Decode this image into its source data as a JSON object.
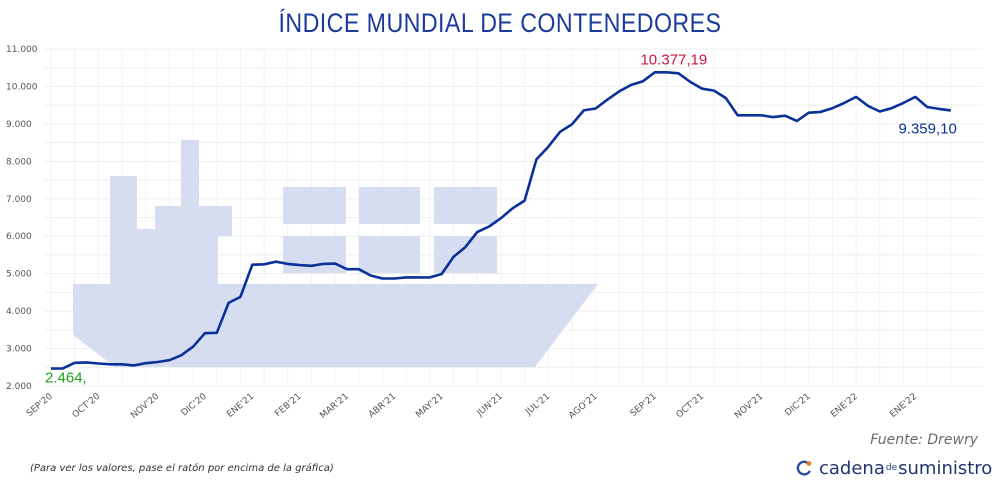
{
  "chart_data": {
    "type": "line",
    "title": "ÍNDICE MUNDIAL DE CONTENEDORES",
    "xlabel": "",
    "ylabel": "",
    "ylim": [
      2000,
      11000
    ],
    "y_ticks": [
      "2.000",
      "3.000",
      "4.000",
      "5.000",
      "6.000",
      "7.000",
      "8.000",
      "9.000",
      "10.000",
      "11.000"
    ],
    "x_ticks": [
      {
        "label": "SEP'20",
        "week": 0
      },
      {
        "label": "OCT'20",
        "week": 4
      },
      {
        "label": "NOV'20",
        "week": 9
      },
      {
        "label": "DIC'20",
        "week": 13
      },
      {
        "label": "ENE'21",
        "week": 17
      },
      {
        "label": "FEB'21",
        "week": 21
      },
      {
        "label": "MAR'21",
        "week": 25
      },
      {
        "label": "ABR'21",
        "week": 29
      },
      {
        "label": "MAY'21",
        "week": 33
      },
      {
        "label": "JUN'21",
        "week": 38
      },
      {
        "label": "JUL'21",
        "week": 42
      },
      {
        "label": "AGO'21",
        "week": 46
      },
      {
        "label": "SEP'21",
        "week": 51
      },
      {
        "label": "OCT'21",
        "week": 55
      },
      {
        "label": "NOV'21",
        "week": 60
      },
      {
        "label": "DIC'21",
        "week": 64
      },
      {
        "label": "ENE'22",
        "week": 68
      },
      {
        "label": "ENE'22",
        "week": 73
      }
    ],
    "grid": true,
    "series": [
      {
        "name": "",
        "color": "#0a3197",
        "values": [
          2464,
          2470,
          2620,
          2630,
          2600,
          2580,
          2580,
          2550,
          2610,
          2640,
          2690,
          2820,
          3050,
          3410,
          3420,
          4220,
          4380,
          5240,
          5250,
          5320,
          5260,
          5230,
          5210,
          5260,
          5270,
          5120,
          5120,
          4950,
          4870,
          4870,
          4900,
          4900,
          4900,
          4990,
          5450,
          5710,
          6110,
          6260,
          6480,
          6750,
          6950,
          8050,
          8390,
          8790,
          8990,
          9360,
          9410,
          9650,
          9870,
          10040,
          10140,
          10377.19,
          10377,
          10350,
          10120,
          9940,
          9890,
          9690,
          9230,
          9230,
          9230,
          9180,
          9220,
          9080,
          9300,
          9320,
          9420,
          9560,
          9720,
          9480,
          9330,
          9420,
          9560,
          9720,
          9450,
          9400,
          9359.1
        ]
      }
    ],
    "annotations": [
      {
        "text": "2.464,",
        "week": 0,
        "value": 2464,
        "color": "#22a020"
      },
      {
        "text": "10.377,19",
        "week": 51,
        "value": 10377.19,
        "color": "#c8183e"
      },
      {
        "text": "9.359,10",
        "week": 76,
        "value": 9359.1,
        "color": "#0a3197"
      }
    ]
  },
  "source_text": "Fuente: Drewry",
  "footnote": "(Para ver los valores, pase el ratón por encima de la gráfica)",
  "logo": {
    "part1": "cadena",
    "part2": "de",
    "part3": "suministro"
  },
  "colors": {
    "title": "#1d3b9b",
    "line": "#0a3197",
    "ship": "#d6ddf0",
    "grid": "#eeeeee"
  }
}
